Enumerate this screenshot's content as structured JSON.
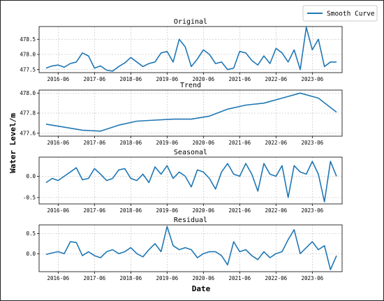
{
  "legend": {
    "label": "Smooth Curve"
  },
  "xlabel": "Date",
  "ylabel": "Water Level/m",
  "colors": {
    "line": "#1f77b4",
    "grid": "#b0b0b0"
  },
  "x_ticks": [
    "2016-06",
    "2017-06",
    "2018-06",
    "2019-06",
    "2020-06",
    "2021-06",
    "2022-06",
    "2023-06"
  ],
  "chart_data": [
    {
      "type": "line",
      "title": "Original",
      "ylim": [
        477.4,
        478.92
      ],
      "yticks": [
        477.5,
        478.0,
        478.5
      ],
      "ytick_labels": [
        "477.5",
        "478.0",
        "478.5"
      ],
      "x": [
        "2016-02",
        "2016-04",
        "2016-06",
        "2016-08",
        "2016-10",
        "2016-12",
        "2017-02",
        "2017-04",
        "2017-06",
        "2017-08",
        "2017-10",
        "2017-12",
        "2018-02",
        "2018-04",
        "2018-06",
        "2018-08",
        "2018-10",
        "2018-12",
        "2019-02",
        "2019-04",
        "2019-06",
        "2019-08",
        "2019-10",
        "2019-12",
        "2020-02",
        "2020-04",
        "2020-06",
        "2020-08",
        "2020-10",
        "2020-12",
        "2021-02",
        "2021-04",
        "2021-06",
        "2021-08",
        "2021-10",
        "2021-12",
        "2022-02",
        "2022-04",
        "2022-06",
        "2022-08",
        "2022-10",
        "2022-12",
        "2023-02",
        "2023-04",
        "2023-06",
        "2023-08",
        "2023-10",
        "2023-12",
        "2024-02"
      ],
      "values": [
        477.55,
        477.62,
        477.65,
        477.58,
        477.7,
        477.75,
        478.05,
        477.95,
        477.55,
        477.62,
        477.48,
        477.45,
        477.6,
        477.72,
        477.9,
        477.75,
        477.6,
        477.7,
        477.75,
        478.05,
        478.1,
        477.75,
        478.5,
        478.25,
        477.6,
        477.85,
        478.15,
        478.0,
        477.7,
        477.75,
        477.5,
        477.55,
        478.1,
        478.05,
        477.8,
        477.65,
        477.95,
        477.7,
        478.2,
        478.05,
        477.75,
        478.15,
        477.5,
        478.9,
        478.15,
        478.5,
        477.6,
        477.75,
        477.75
      ]
    },
    {
      "type": "line",
      "title": "Trend",
      "ylim": [
        477.57,
        478.03
      ],
      "yticks": [
        477.6,
        477.8,
        478.0
      ],
      "ytick_labels": [
        "477.6",
        "477.8",
        "478.0"
      ],
      "x": [
        "2016-02",
        "2016-08",
        "2017-02",
        "2017-08",
        "2018-02",
        "2018-08",
        "2019-02",
        "2019-08",
        "2020-02",
        "2020-08",
        "2021-02",
        "2021-08",
        "2022-02",
        "2022-08",
        "2023-02",
        "2023-08",
        "2024-02"
      ],
      "values": [
        477.69,
        477.66,
        477.63,
        477.62,
        477.68,
        477.72,
        477.73,
        477.74,
        477.74,
        477.77,
        477.84,
        477.88,
        477.9,
        477.95,
        478.0,
        477.95,
        477.81
      ]
    },
    {
      "type": "line",
      "title": "Seasonal",
      "ylim": [
        -0.65,
        0.45
      ],
      "yticks": [
        -0.5,
        0.0
      ],
      "ytick_labels": [
        "-0.5",
        "0.0"
      ],
      "x": [
        "2016-02",
        "2016-04",
        "2016-06",
        "2016-08",
        "2016-10",
        "2016-12",
        "2017-02",
        "2017-04",
        "2017-06",
        "2017-08",
        "2017-10",
        "2017-12",
        "2018-02",
        "2018-04",
        "2018-06",
        "2018-08",
        "2018-10",
        "2018-12",
        "2019-02",
        "2019-04",
        "2019-06",
        "2019-08",
        "2019-10",
        "2019-12",
        "2020-02",
        "2020-04",
        "2020-06",
        "2020-08",
        "2020-10",
        "2020-12",
        "2021-02",
        "2021-04",
        "2021-06",
        "2021-08",
        "2021-10",
        "2021-12",
        "2022-02",
        "2022-04",
        "2022-06",
        "2022-08",
        "2022-10",
        "2022-12",
        "2023-02",
        "2023-04",
        "2023-06",
        "2023-08",
        "2023-10",
        "2023-12",
        "2024-02"
      ],
      "values": [
        -0.15,
        -0.05,
        -0.1,
        0.0,
        0.1,
        0.2,
        -0.08,
        -0.05,
        0.18,
        0.05,
        -0.1,
        -0.05,
        0.15,
        0.18,
        -0.05,
        -0.1,
        0.05,
        -0.15,
        0.22,
        0.05,
        0.25,
        -0.05,
        0.1,
        0.0,
        -0.25,
        0.15,
        0.1,
        -0.05,
        -0.3,
        0.1,
        0.3,
        0.05,
        0.0,
        0.3,
        0.05,
        -0.35,
        0.3,
        0.05,
        0.0,
        0.25,
        -0.5,
        0.25,
        0.1,
        0.05,
        0.35,
        0.05,
        -0.6,
        0.35,
        0.0
      ]
    },
    {
      "type": "line",
      "title": "Residual",
      "ylim": [
        -0.45,
        0.72
      ],
      "yticks": [
        0.0,
        0.5
      ],
      "ytick_labels": [
        "0.0",
        "0.5"
      ],
      "x": [
        "2016-02",
        "2016-04",
        "2016-06",
        "2016-08",
        "2016-10",
        "2016-12",
        "2017-02",
        "2017-04",
        "2017-06",
        "2017-08",
        "2017-10",
        "2017-12",
        "2018-02",
        "2018-04",
        "2018-06",
        "2018-08",
        "2018-10",
        "2018-12",
        "2019-02",
        "2019-04",
        "2019-06",
        "2019-08",
        "2019-10",
        "2019-12",
        "2020-02",
        "2020-04",
        "2020-06",
        "2020-08",
        "2020-10",
        "2020-12",
        "2021-02",
        "2021-04",
        "2021-06",
        "2021-08",
        "2021-10",
        "2021-12",
        "2022-02",
        "2022-04",
        "2022-06",
        "2022-08",
        "2022-10",
        "2022-12",
        "2023-02",
        "2023-04",
        "2023-06",
        "2023-08",
        "2023-10",
        "2023-12",
        "2024-02"
      ],
      "values": [
        -0.02,
        0.02,
        0.05,
        0.0,
        0.3,
        0.28,
        -0.05,
        0.05,
        -0.05,
        -0.1,
        0.05,
        0.1,
        0.0,
        0.05,
        0.15,
        0.0,
        -0.08,
        0.1,
        0.25,
        0.05,
        0.68,
        0.2,
        0.1,
        0.15,
        0.1,
        -0.1,
        0.0,
        0.05,
        0.05,
        -0.05,
        -0.28,
        0.3,
        0.05,
        0.1,
        -0.05,
        -0.15,
        0.05,
        -0.1,
        0.0,
        0.05,
        0.35,
        0.6,
        0.0,
        0.15,
        0.3,
        0.1,
        0.2,
        -0.4,
        -0.05
      ]
    }
  ]
}
